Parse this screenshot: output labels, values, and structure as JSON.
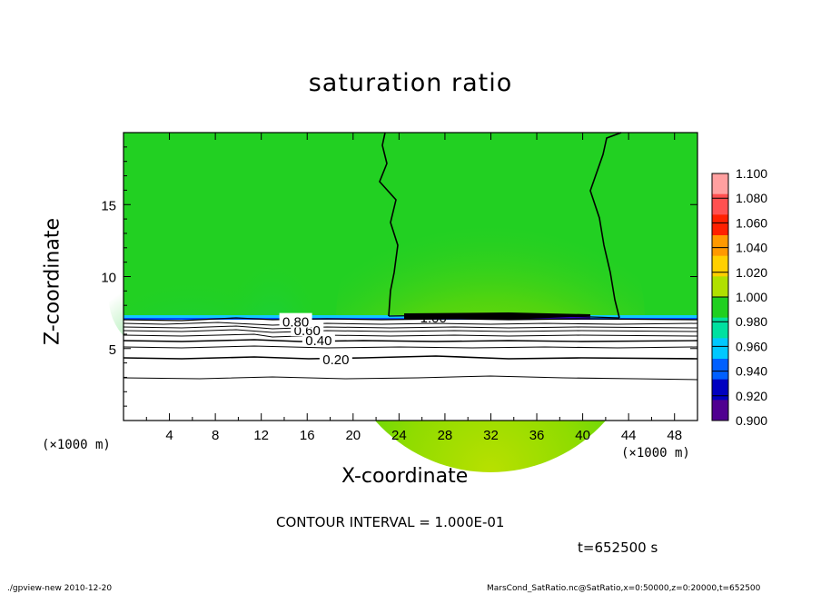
{
  "chart_data": {
    "type": "heatmap",
    "title": "saturation ratio",
    "xlabel": "X-coordinate",
    "ylabel": "Z-coordinate",
    "x_unit": "(×1000 m)",
    "xlim": [
      0,
      50
    ],
    "ylim": [
      0,
      20
    ],
    "x_ticks": [
      "4",
      "8",
      "12",
      "16",
      "20",
      "24",
      "28",
      "32",
      "36",
      "40",
      "44",
      "48"
    ],
    "y_ticks": [
      "5",
      "10",
      "15"
    ],
    "colorbar": {
      "labels": [
        "1.100",
        "1.080",
        "1.060",
        "1.040",
        "1.020",
        "1.000",
        "0.980",
        "0.960",
        "0.940",
        "0.920",
        "0.900"
      ],
      "colors": [
        "#ffa0a0",
        "#ff5050",
        "#ff2000",
        "#ff9900",
        "#ffd000",
        "#b0e000",
        "#20d020",
        "#00e0a0",
        "#00c8ff",
        "#0060ff",
        "#0000c0",
        "#500090"
      ]
    },
    "contour_labels": [
      {
        "text": "0.20",
        "x": 18.5,
        "z": 4.3
      },
      {
        "text": "0.40",
        "x": 17.0,
        "z": 5.6
      },
      {
        "text": "0.60",
        "x": 16.0,
        "z": 6.3
      },
      {
        "text": "0.80",
        "x": 15.0,
        "z": 6.9
      },
      {
        "text": "1.00",
        "x": 27.0,
        "z": 7.2
      }
    ],
    "contour_interval": "CONTOUR INTERVAL = 1.000E-01",
    "time": "t=652500 s",
    "footer_left": "./gpview-new  2010-12-20",
    "footer_right": "MarsCond_SatRatio.nc@SatRatio,x=0:50000,z=0:20000,t=652500"
  }
}
